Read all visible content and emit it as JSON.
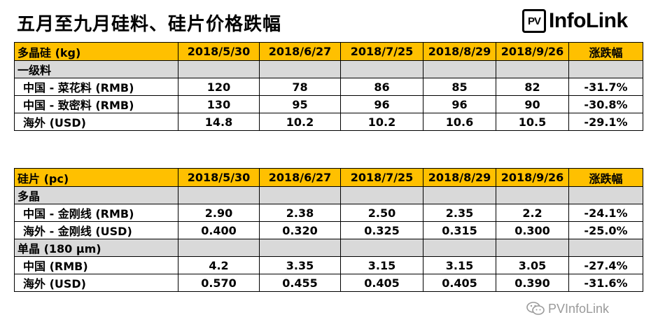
{
  "title": "五月至九月硅料、硅片价格跌幅",
  "logo": {
    "box_text": "PV",
    "text": "InfoLink"
  },
  "watermark": {
    "text": "PVInfoLink"
  },
  "polysilicon": {
    "header": [
      "多晶硅 (kg)",
      "2018/5/30",
      "2018/6/27",
      "2018/7/25",
      "2018/8/29",
      "2018/9/26",
      "涨跌幅"
    ],
    "section": "一级料",
    "rows": [
      [
        "中国 - 菜花料 (RMB)",
        "120",
        "78",
        "86",
        "85",
        "82",
        "-31.7%"
      ],
      [
        "中国 - 致密料 (RMB)",
        "130",
        "95",
        "96",
        "96",
        "90",
        "-30.8%"
      ],
      [
        "海外 (USD)",
        "14.8",
        "10.2",
        "10.2",
        "10.6",
        "10.5",
        "-29.1%"
      ]
    ]
  },
  "wafer": {
    "header": [
      "硅片 (pc)",
      "2018/5/30",
      "2018/6/27",
      "2018/7/25",
      "2018/8/29",
      "2018/9/26",
      "涨跌幅"
    ],
    "section1": "多晶",
    "rows1": [
      [
        "中国 - 金刚线 (RMB)",
        "2.90",
        "2.38",
        "2.50",
        "2.35",
        "2.2",
        "-24.1%"
      ],
      [
        "海外 - 金刚线 (USD)",
        "0.400",
        "0.320",
        "0.325",
        "0.315",
        "0.300",
        "-25.0%"
      ]
    ],
    "section2": "单晶 (180 μm)",
    "rows2": [
      [
        "中国 (RMB)",
        "4.2",
        "3.35",
        "3.15",
        "3.15",
        "3.05",
        "-27.4%"
      ],
      [
        "海外 (USD)",
        "0.570",
        "0.455",
        "0.405",
        "0.405",
        "0.390",
        "-31.6%"
      ]
    ]
  }
}
